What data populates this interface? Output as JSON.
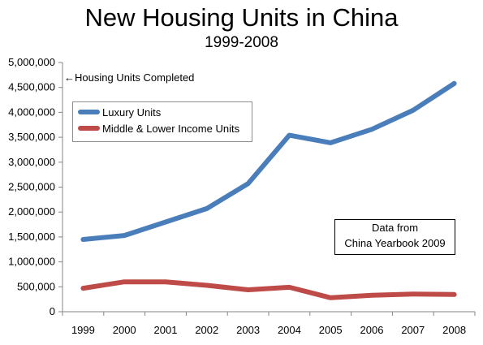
{
  "title": "New Housing Units in China",
  "subtitle": "1999-2008",
  "annotation": "Housing Units Completed",
  "annotation_arrow": "←",
  "source_note": {
    "line1": "Data from",
    "line2": "China Yearbook 2009"
  },
  "colors": {
    "luxury": "#4a7ebb",
    "middle": "#be4b48",
    "axis": "#868686"
  },
  "chart_data": {
    "type": "line",
    "title": "New Housing Units in China",
    "subtitle": "1999-2008",
    "categories": [
      "1999",
      "2000",
      "2001",
      "2002",
      "2003",
      "2004",
      "2005",
      "2006",
      "2007",
      "2008"
    ],
    "series": [
      {
        "name": "Luxury Units",
        "color": "#4a7ebb",
        "values": [
          1450000,
          1530000,
          1800000,
          2070000,
          2570000,
          3540000,
          3390000,
          3660000,
          4040000,
          4580000
        ]
      },
      {
        "name": "Middle & Lower Income Units",
        "color": "#be4b48",
        "values": [
          470000,
          600000,
          600000,
          530000,
          440000,
          490000,
          280000,
          330000,
          355000,
          345000
        ]
      }
    ],
    "ylim": [
      0,
      5000000
    ],
    "yticks": [
      "0",
      "500,000",
      "1,000,000",
      "1,500,000",
      "2,000,000",
      "2,500,000",
      "3,000,000",
      "3,500,000",
      "4,000,000",
      "4,500,000",
      "5,000,000"
    ],
    "xlabel": "",
    "ylabel": "",
    "grid": false,
    "legend_position": "top-left"
  }
}
